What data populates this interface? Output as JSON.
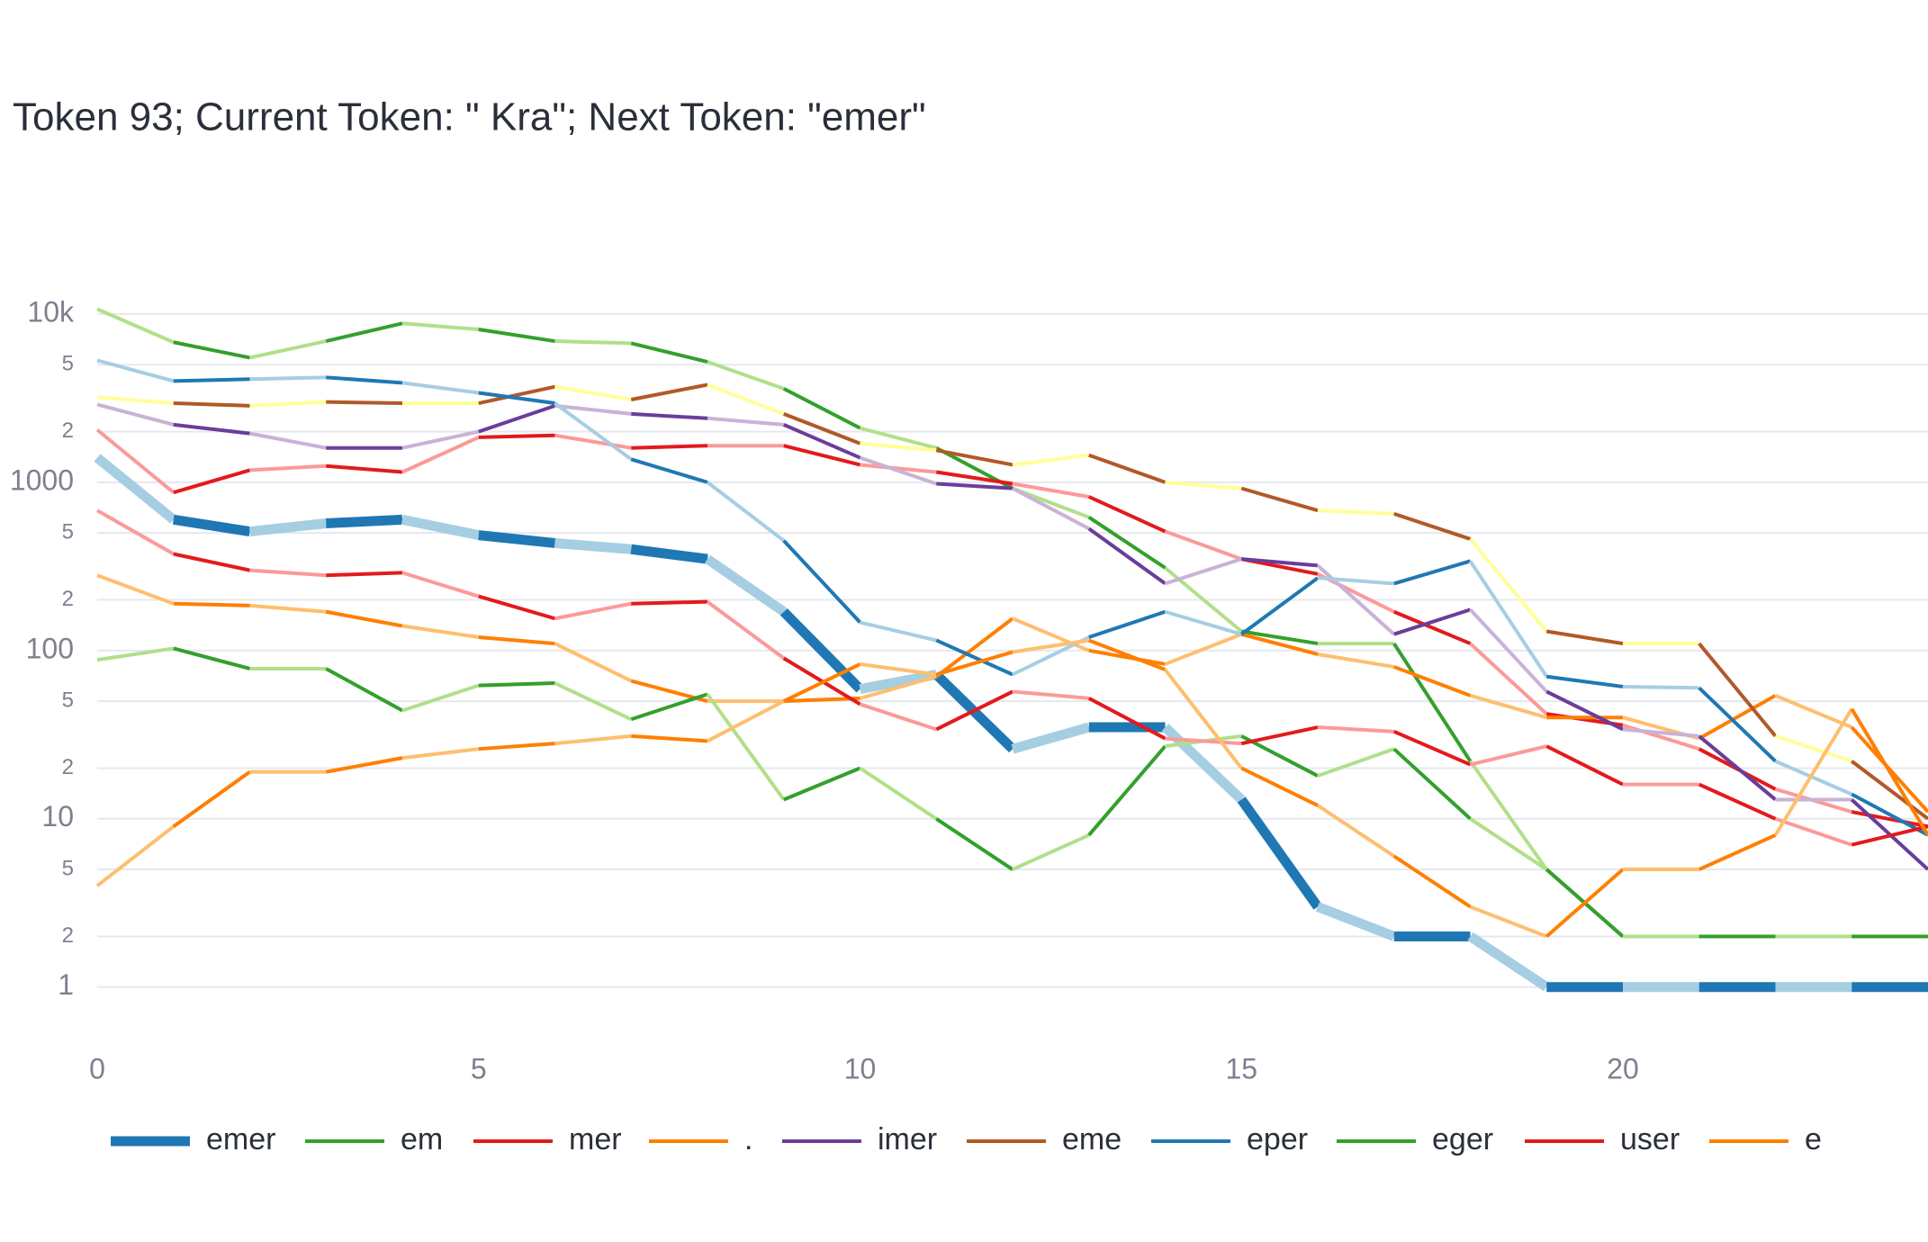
{
  "chart_data": {
    "type": "line",
    "title": "Token 93; Current Token: \" Kra\"; Next Token: \"emer\"",
    "x": [
      0,
      1,
      2,
      3,
      4,
      5,
      6,
      7,
      8,
      9,
      10,
      11,
      12,
      13,
      14,
      15,
      16,
      17,
      18,
      19,
      20,
      21,
      22,
      23,
      24
    ],
    "xlim": [
      0,
      24
    ],
    "xticks": [
      0,
      5,
      10,
      15,
      20
    ],
    "log_y": true,
    "grid": true,
    "legend": "bottom",
    "ylim": [
      0.5,
      15000
    ],
    "yticks": [
      1,
      2,
      5,
      10,
      {
        "value": 20,
        "label": "2"
      },
      {
        "value": 50,
        "label": "5"
      },
      100,
      {
        "value": 200,
        "label": "2"
      },
      {
        "value": 500,
        "label": "5"
      },
      1000,
      {
        "value": 2000,
        "label": "2"
      },
      {
        "value": 5000,
        "label": "5"
      },
      {
        "value": 10000,
        "label": "10k"
      }
    ],
    "series": [
      {
        "name": "emer",
        "color": "#1f78b4",
        "alt_color": "#a6cee3",
        "line_width": 11,
        "values": [
          1400,
          600,
          510,
          570,
          600,
          485,
          435,
          400,
          350,
          170,
          59,
          72,
          26,
          35,
          35,
          13,
          3,
          2,
          2,
          1,
          1,
          1,
          1,
          1,
          1
        ]
      },
      {
        "name": "em",
        "color": "#33a02c",
        "alt_color": "#b2df8a",
        "line_width": 4,
        "values": [
          10700,
          6800,
          5500,
          6900,
          8800,
          8100,
          6900,
          6700,
          5200,
          3600,
          2100,
          1600,
          920,
          620,
          310,
          130,
          110,
          110,
          22,
          5,
          2,
          2,
          2,
          2,
          2
        ]
      },
      {
        "name": "mer",
        "color": "#e31a1c",
        "alt_color": "#fb9a99",
        "line_width": 4,
        "values": [
          2050,
          870,
          1180,
          1250,
          1150,
          1850,
          1900,
          1600,
          1650,
          1650,
          1270,
          1150,
          980,
          820,
          510,
          350,
          285,
          170,
          110,
          42,
          36,
          26,
          15,
          11,
          9
        ]
      },
      {
        "name": ".",
        "color": "#ff7f00",
        "alt_color": "#fdbf6f",
        "line_width": 4,
        "values": [
          280,
          190,
          185,
          170,
          140,
          120,
          110,
          66,
          50,
          50,
          52,
          70,
          155,
          100,
          83,
          125,
          95,
          80,
          54,
          40,
          40,
          30,
          54,
          35,
          11
        ]
      },
      {
        "name": "imer",
        "color": "#6a3d9a",
        "alt_color": "#cab2d6",
        "line_width": 4,
        "values": [
          2900,
          2200,
          1950,
          1600,
          1600,
          2000,
          2850,
          2550,
          2400,
          2200,
          1400,
          980,
          920,
          530,
          250,
          350,
          320,
          125,
          175,
          57,
          34,
          31,
          13,
          13,
          5
        ]
      },
      {
        "name": "eme",
        "color": "#b15928",
        "alt_color": "#ffff99",
        "line_width": 4,
        "values": [
          3200,
          2950,
          2850,
          3000,
          2950,
          2950,
          3700,
          3100,
          3800,
          2550,
          1700,
          1550,
          1270,
          1450,
          1000,
          920,
          680,
          650,
          460,
          130,
          110,
          110,
          31,
          22,
          10
        ]
      },
      {
        "name": "eper",
        "color": "#1f78b4",
        "alt_color": "#a6cee3",
        "line_width": 4,
        "values": [
          5300,
          4000,
          4100,
          4200,
          3900,
          3400,
          2950,
          1370,
          1000,
          450,
          147,
          115,
          72,
          120,
          170,
          125,
          270,
          250,
          340,
          70,
          61,
          60,
          22,
          14,
          8
        ]
      },
      {
        "name": "eger",
        "color": "#33a02c",
        "alt_color": "#b2df8a",
        "line_width": 4,
        "values": [
          88,
          103,
          78,
          78,
          44,
          62,
          64,
          39,
          55,
          13,
          20,
          10,
          5,
          8,
          27,
          31,
          18,
          26,
          10,
          5,
          2,
          2,
          2,
          2,
          2
        ]
      },
      {
        "name": "user",
        "color": "#e31a1c",
        "alt_color": "#fb9a99",
        "line_width": 4,
        "values": [
          680,
          375,
          300,
          280,
          290,
          210,
          155,
          190,
          195,
          90,
          48,
          34,
          57,
          52,
          30,
          28,
          35,
          33,
          21,
          27,
          16,
          16,
          10,
          7,
          9
        ]
      },
      {
        "name": "e",
        "color": "#ff7f00",
        "alt_color": "#fdbf6f",
        "line_width": 4,
        "values": [
          4,
          9,
          19,
          19,
          23,
          26,
          28,
          31,
          29,
          50,
          83,
          72,
          98,
          115,
          77,
          20,
          12,
          6,
          3,
          2,
          5,
          5,
          8,
          45,
          8
        ]
      }
    ]
  }
}
